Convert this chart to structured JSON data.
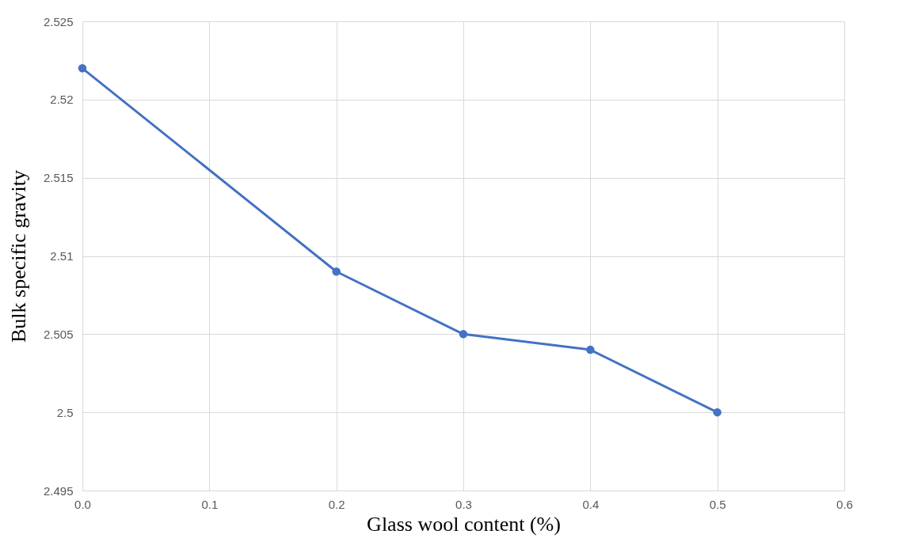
{
  "chart_data": {
    "type": "line",
    "xlabel": "Glass  wool content  (%)",
    "ylabel": "Bulk  specific  gravity",
    "x": [
      0,
      0.2,
      0.3,
      0.4,
      0.5
    ],
    "series": [
      {
        "color": "#4472c4",
        "values": [
          2.522,
          2.509,
          2.505,
          2.504,
          2.5
        ]
      }
    ],
    "xlim": [
      0,
      0.6
    ],
    "xticks": [
      {
        "value": 0,
        "label": "0.0"
      },
      0.1,
      0.2,
      0.3,
      0.4,
      0.5,
      0.6
    ],
    "ylim": [
      2.495,
      2.525
    ],
    "yticks": [
      2.495,
      2.5,
      2.505,
      2.51,
      2.515,
      2.52,
      2.525
    ],
    "grid": true,
    "marker": "circle",
    "line_style": "solid"
  }
}
